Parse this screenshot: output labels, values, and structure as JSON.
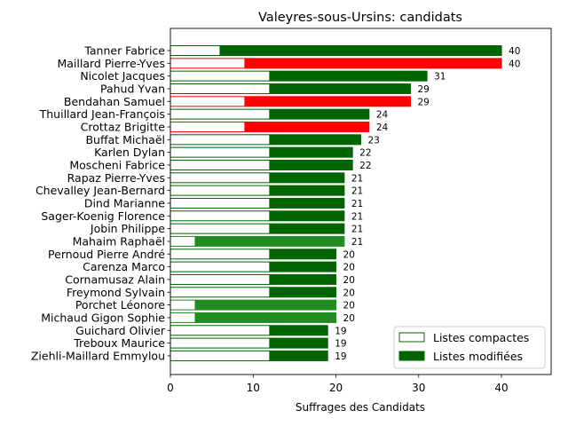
{
  "chart_data": {
    "type": "bar",
    "orientation": "horizontal",
    "title": "Valeyres-sous-Ursins: candidats",
    "xlabel": "Suffrages des Candidats",
    "ylabel": "",
    "xlim": [
      0,
      46
    ],
    "xticks": [
      "0",
      "10",
      "20",
      "30",
      "40"
    ],
    "grid": false,
    "legend_position": "bottom-right",
    "legend": {
      "compact_label": "Listes compactes",
      "modified_label": "Listes modifiées"
    },
    "colors": {
      "dark_green": "#006400",
      "forest_green": "#228b22",
      "red": "#ff0000"
    },
    "categories": [
      "Tanner Fabrice",
      "Maillard Pierre-Yves",
      "Nicolet Jacques",
      "Pahud Yvan",
      "Bendahan Samuel",
      "Thuillard Jean-François",
      "Crottaz Brigitte",
      "Buffat Michaël",
      "Karlen Dylan",
      "Moscheni Fabrice",
      "Rapaz Pierre-Yves",
      "Chevalley Jean-Bernard",
      "Dind Marianne",
      "Sager-Koenig Florence",
      "Jobin Philippe",
      "Mahaim Raphaël",
      "Pernoud Pierre André",
      "Carenza Marco",
      "Cornamusaz Alain",
      "Freymond Sylvain",
      "Porchet Léonore",
      "Michaud Gigon Sophie",
      "Guichard Olivier",
      "Treboux Maurice",
      "Ziehli-Maillard Emmylou"
    ],
    "series": [
      {
        "name": "Listes compactes",
        "values": [
          6,
          9,
          12,
          12,
          9,
          12,
          9,
          12,
          12,
          12,
          12,
          12,
          12,
          12,
          12,
          3,
          12,
          12,
          12,
          12,
          3,
          3,
          12,
          12,
          12
        ]
      },
      {
        "name": "Listes modifiées",
        "values": [
          34,
          31,
          19,
          17,
          20,
          12,
          15,
          11,
          10,
          10,
          9,
          9,
          9,
          9,
          9,
          18,
          8,
          8,
          8,
          8,
          17,
          17,
          7,
          7,
          7
        ]
      }
    ],
    "totals": [
      40,
      40,
      31,
      29,
      29,
      24,
      24,
      23,
      22,
      22,
      21,
      21,
      21,
      21,
      21,
      21,
      20,
      20,
      20,
      20,
      20,
      20,
      19,
      19,
      19
    ],
    "bar_colors": [
      "dark_green",
      "red",
      "dark_green",
      "dark_green",
      "red",
      "dark_green",
      "red",
      "dark_green",
      "dark_green",
      "dark_green",
      "dark_green",
      "dark_green",
      "dark_green",
      "dark_green",
      "dark_green",
      "forest_green",
      "dark_green",
      "dark_green",
      "dark_green",
      "dark_green",
      "forest_green",
      "forest_green",
      "dark_green",
      "dark_green",
      "dark_green"
    ]
  }
}
